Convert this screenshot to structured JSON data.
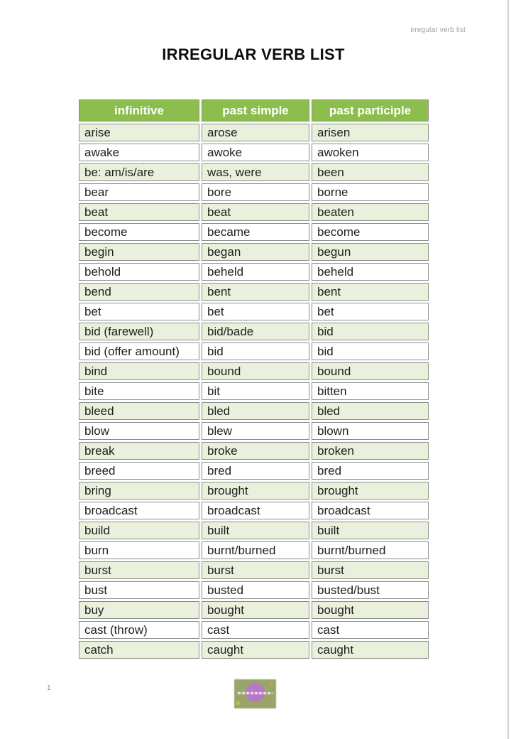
{
  "page": {
    "header_note": "irregular verb list",
    "title": "IRREGULAR VERB LIST",
    "page_number": "1"
  },
  "table": {
    "headers": [
      "infinitive",
      "past simple",
      "past participle"
    ],
    "rows": [
      [
        "arise",
        "arose",
        "arisen"
      ],
      [
        "awake",
        "awoke",
        "awoken"
      ],
      [
        "be: am/is/are",
        "was, were",
        "been"
      ],
      [
        "bear",
        "bore",
        "borne"
      ],
      [
        "beat",
        "beat",
        "beaten"
      ],
      [
        "become",
        "became",
        "become"
      ],
      [
        "begin",
        "began",
        "begun"
      ],
      [
        "behold",
        "beheld",
        "beheld"
      ],
      [
        "bend",
        "bent",
        "bent"
      ],
      [
        "bet",
        "bet",
        "bet"
      ],
      [
        "bid (farewell)",
        "bid/bade",
        "bid"
      ],
      [
        "bid (offer amount)",
        "bid",
        "bid"
      ],
      [
        "bind",
        "bound",
        "bound"
      ],
      [
        "bite",
        "bit",
        "bitten"
      ],
      [
        "bleed",
        "bled",
        "bled"
      ],
      [
        "blow",
        "blew",
        "blown"
      ],
      [
        "break",
        "broke",
        "broken"
      ],
      [
        "breed",
        "bred",
        "bred"
      ],
      [
        "bring",
        "brought",
        "brought"
      ],
      [
        "broadcast",
        "broadcast",
        "broadcast"
      ],
      [
        "build",
        "built",
        "built"
      ],
      [
        "burn",
        "burnt/burned",
        "burnt/burned"
      ],
      [
        "burst",
        "burst",
        "burst"
      ],
      [
        "bust",
        "busted",
        "busted/bust"
      ],
      [
        "buy",
        "bought",
        "bought"
      ],
      [
        "cast (throw)",
        "cast",
        "cast"
      ],
      [
        "catch",
        "caught",
        "caught"
      ]
    ]
  },
  "colors": {
    "header_bg": "#8CBE4D",
    "row_alt_bg": "#E9F0DC",
    "border": "#8C8C8C",
    "logo_bg": "#99A56B",
    "logo_circle": "#BA74CF",
    "logo_dot_orange": "#E09A3C",
    "logo_dot_yellow": "#CFBE45"
  }
}
